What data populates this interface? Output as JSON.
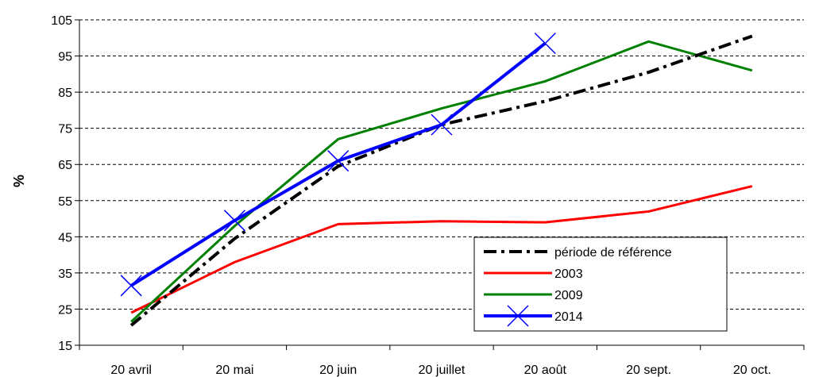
{
  "chart_data": {
    "type": "line",
    "ylabel": "%",
    "ylim": [
      15,
      105
    ],
    "yticks": [
      15,
      25,
      35,
      45,
      55,
      65,
      75,
      85,
      95,
      105
    ],
    "categories": [
      "20 avril",
      "20 mai",
      "20 juin",
      "20 juillet",
      "20 août",
      "20 sept.",
      "20 oct."
    ],
    "grid": "horizontal dashed",
    "legend_position": "bottom-right",
    "series": [
      {
        "name": "période de référence",
        "color": "#000000",
        "style": "dash-dot",
        "values": [
          20.5,
          44.5,
          64.5,
          76,
          82.5,
          90.5,
          100.5
        ]
      },
      {
        "name": "2003",
        "color": "#ff0000",
        "style": "solid",
        "values": [
          24,
          38,
          48.5,
          49.3,
          49,
          52,
          59
        ]
      },
      {
        "name": "2009",
        "color": "#008000",
        "style": "solid",
        "values": [
          21.5,
          48,
          72,
          80.5,
          88,
          99,
          91
        ]
      },
      {
        "name": "2014",
        "color": "#0000ff",
        "style": "solid-x",
        "values": [
          31.5,
          49.5,
          66,
          76,
          98.5,
          null,
          null
        ]
      }
    ]
  }
}
